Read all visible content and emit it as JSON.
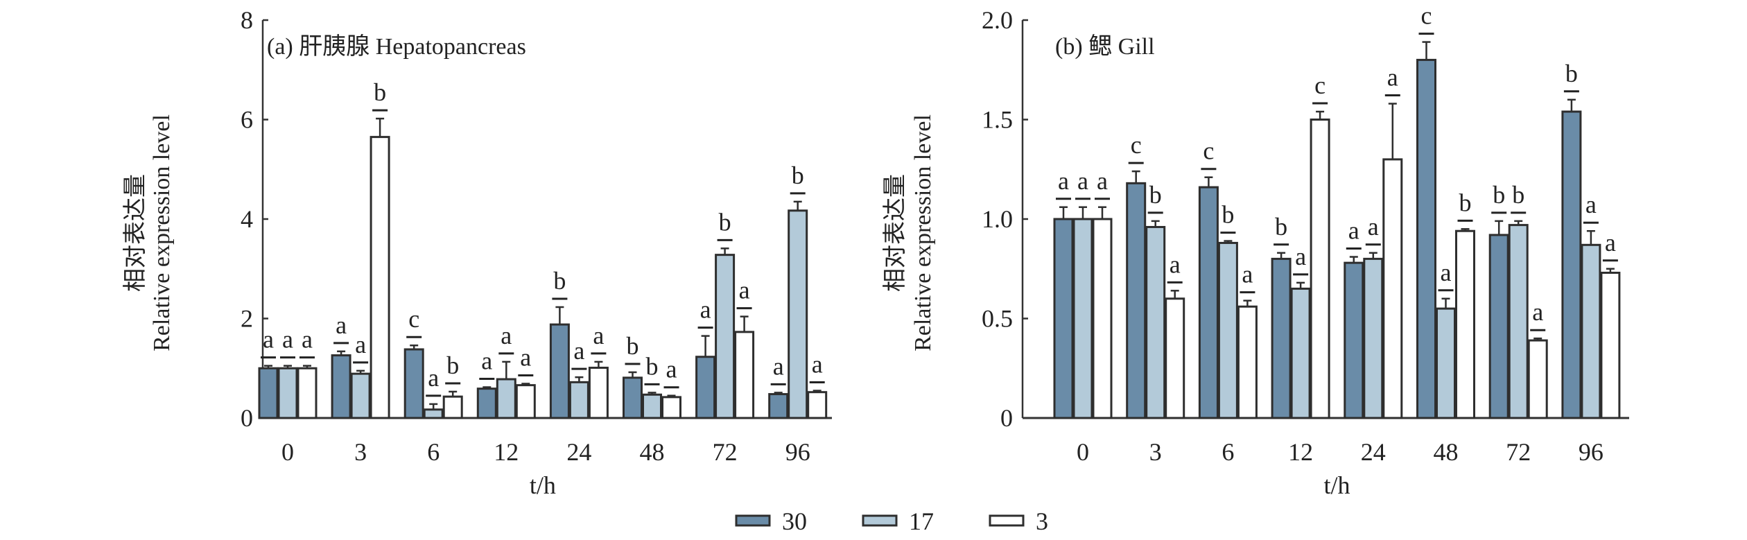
{
  "legend": [
    {
      "label": "30",
      "color": "#6a8ca8"
    },
    {
      "label": "17",
      "color": "#b3cad9"
    },
    {
      "label": "3",
      "color": "#ffffff"
    }
  ],
  "chart_data": [
    {
      "type": "bar",
      "title": "(a) 肝胰腺 Hepatopancreas",
      "ylabel_cn": "相对表达量",
      "ylabel": "Relative expression level",
      "xlabel": "t/h",
      "categories": [
        "0",
        "3",
        "6",
        "12",
        "24",
        "48",
        "72",
        "96"
      ],
      "ylim": [
        0,
        8
      ],
      "yticks": [
        "0",
        "2",
        "4",
        "6",
        "8"
      ],
      "series": [
        {
          "name": "30",
          "values": [
            1.0,
            1.26,
            1.38,
            0.59,
            1.88,
            0.81,
            1.23,
            0.48
          ],
          "errors": [
            0.05,
            0.08,
            0.08,
            0.03,
            0.35,
            0.11,
            0.42,
            0.03
          ],
          "letters": [
            "a",
            "a",
            "c",
            "a",
            "b",
            "b",
            "a",
            "a"
          ]
        },
        {
          "name": "17",
          "values": [
            1.0,
            0.89,
            0.17,
            0.78,
            0.72,
            0.47,
            3.28,
            4.17
          ],
          "errors": [
            0.05,
            0.06,
            0.11,
            0.35,
            0.1,
            0.04,
            0.13,
            0.18
          ],
          "letters": [
            "a",
            "a",
            "a",
            "a",
            "a",
            "b",
            "b",
            "b"
          ]
        },
        {
          "name": "3",
          "values": [
            1.0,
            5.65,
            0.43,
            0.66,
            1.01,
            0.42,
            1.73,
            0.52
          ],
          "errors": [
            0.05,
            0.37,
            0.1,
            0.03,
            0.12,
            0.03,
            0.31,
            0.03
          ],
          "letters": [
            "a",
            "b",
            "b",
            "a",
            "a",
            "a",
            "a",
            "a"
          ]
        }
      ]
    },
    {
      "type": "bar",
      "title": "(b) 鳃 Gill",
      "ylabel_cn": "相对表达量",
      "ylabel": "Relative expression level",
      "xlabel": "t/h",
      "categories": [
        "0",
        "3",
        "6",
        "12",
        "24",
        "48",
        "72",
        "96"
      ],
      "ylim": [
        0,
        2.0
      ],
      "yticks": [
        "0",
        "0.5",
        "1.0",
        "1.5",
        "2.0"
      ],
      "series": [
        {
          "name": "30",
          "values": [
            1.0,
            1.18,
            1.16,
            0.8,
            0.78,
            1.8,
            0.92,
            1.54
          ],
          "errors": [
            0.06,
            0.06,
            0.05,
            0.03,
            0.03,
            0.09,
            0.07,
            0.06
          ],
          "letters": [
            "a",
            "c",
            "c",
            "b",
            "a",
            "c",
            "b",
            "b"
          ]
        },
        {
          "name": "17",
          "values": [
            1.0,
            0.96,
            0.88,
            0.65,
            0.8,
            0.55,
            0.97,
            0.87
          ],
          "errors": [
            0.06,
            0.03,
            0.01,
            0.03,
            0.03,
            0.05,
            0.02,
            0.07
          ],
          "letters": [
            "a",
            "b",
            "b",
            "a",
            "a",
            "a",
            "b",
            "a"
          ]
        },
        {
          "name": "3",
          "values": [
            1.0,
            0.6,
            0.56,
            1.5,
            1.3,
            0.94,
            0.39,
            0.73
          ],
          "errors": [
            0.06,
            0.04,
            0.03,
            0.04,
            0.28,
            0.01,
            0.01,
            0.02
          ],
          "letters": [
            "a",
            "a",
            "a",
            "c",
            "a",
            "b",
            "a",
            "a"
          ]
        }
      ]
    }
  ]
}
